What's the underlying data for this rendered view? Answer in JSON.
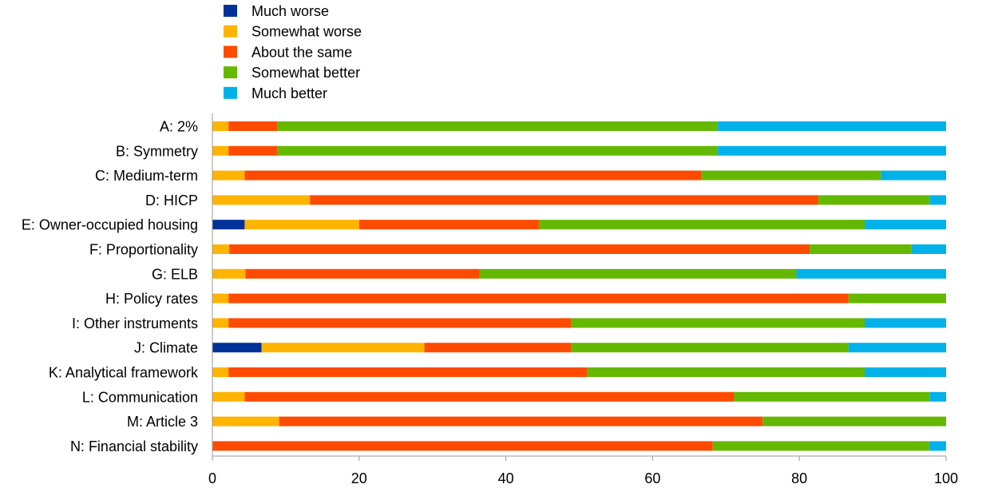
{
  "chart_data": {
    "type": "bar",
    "orientation": "horizontal",
    "stacked": true,
    "title": "",
    "xlabel": "",
    "ylabel": "",
    "xlim": [
      0,
      100
    ],
    "xticks": [
      "0",
      "20",
      "40",
      "60",
      "80",
      "100"
    ],
    "grid": false,
    "legend_position": "top-left",
    "categories": [
      "A: 2%",
      "B: Symmetry",
      "C: Medium-term",
      "D: HICP",
      "E: Owner-occupied housing",
      "F: Proportionality",
      "G: ELB",
      "H: Policy rates",
      "I: Other instruments",
      "J: Climate",
      "K: Analytical framework",
      "L: Communication",
      "M: Article 3",
      "N: Financial stability"
    ],
    "series": [
      {
        "name": "Much worse",
        "color": "#003299",
        "values": [
          0,
          0,
          0,
          0,
          4.4,
          0,
          0,
          0,
          0,
          6.7,
          0,
          0,
          0,
          0
        ]
      },
      {
        "name": "Somewhat worse",
        "color": "#FFB400",
        "values": [
          2.2,
          2.2,
          4.4,
          13.3,
          15.6,
          2.3,
          4.5,
          2.2,
          2.2,
          22.2,
          2.2,
          4.4,
          9.1,
          0
        ]
      },
      {
        "name": "About the same",
        "color": "#FF4B00",
        "values": [
          6.7,
          6.7,
          62.2,
          69.3,
          24.5,
          79.1,
          31.9,
          84.5,
          46.7,
          20.0,
          48.9,
          66.7,
          65.9,
          68.2
        ]
      },
      {
        "name": "Somewhat better",
        "color": "#65B800",
        "values": [
          60.0,
          60.0,
          24.5,
          15.2,
          44.4,
          13.9,
          43.2,
          13.3,
          40.0,
          37.8,
          37.8,
          26.7,
          25.0,
          29.5
        ]
      },
      {
        "name": "Much better",
        "color": "#00B1EA",
        "values": [
          31.1,
          31.1,
          8.9,
          2.2,
          11.1,
          4.7,
          20.4,
          0,
          11.1,
          13.3,
          11.1,
          2.2,
          0,
          2.3
        ]
      }
    ]
  }
}
